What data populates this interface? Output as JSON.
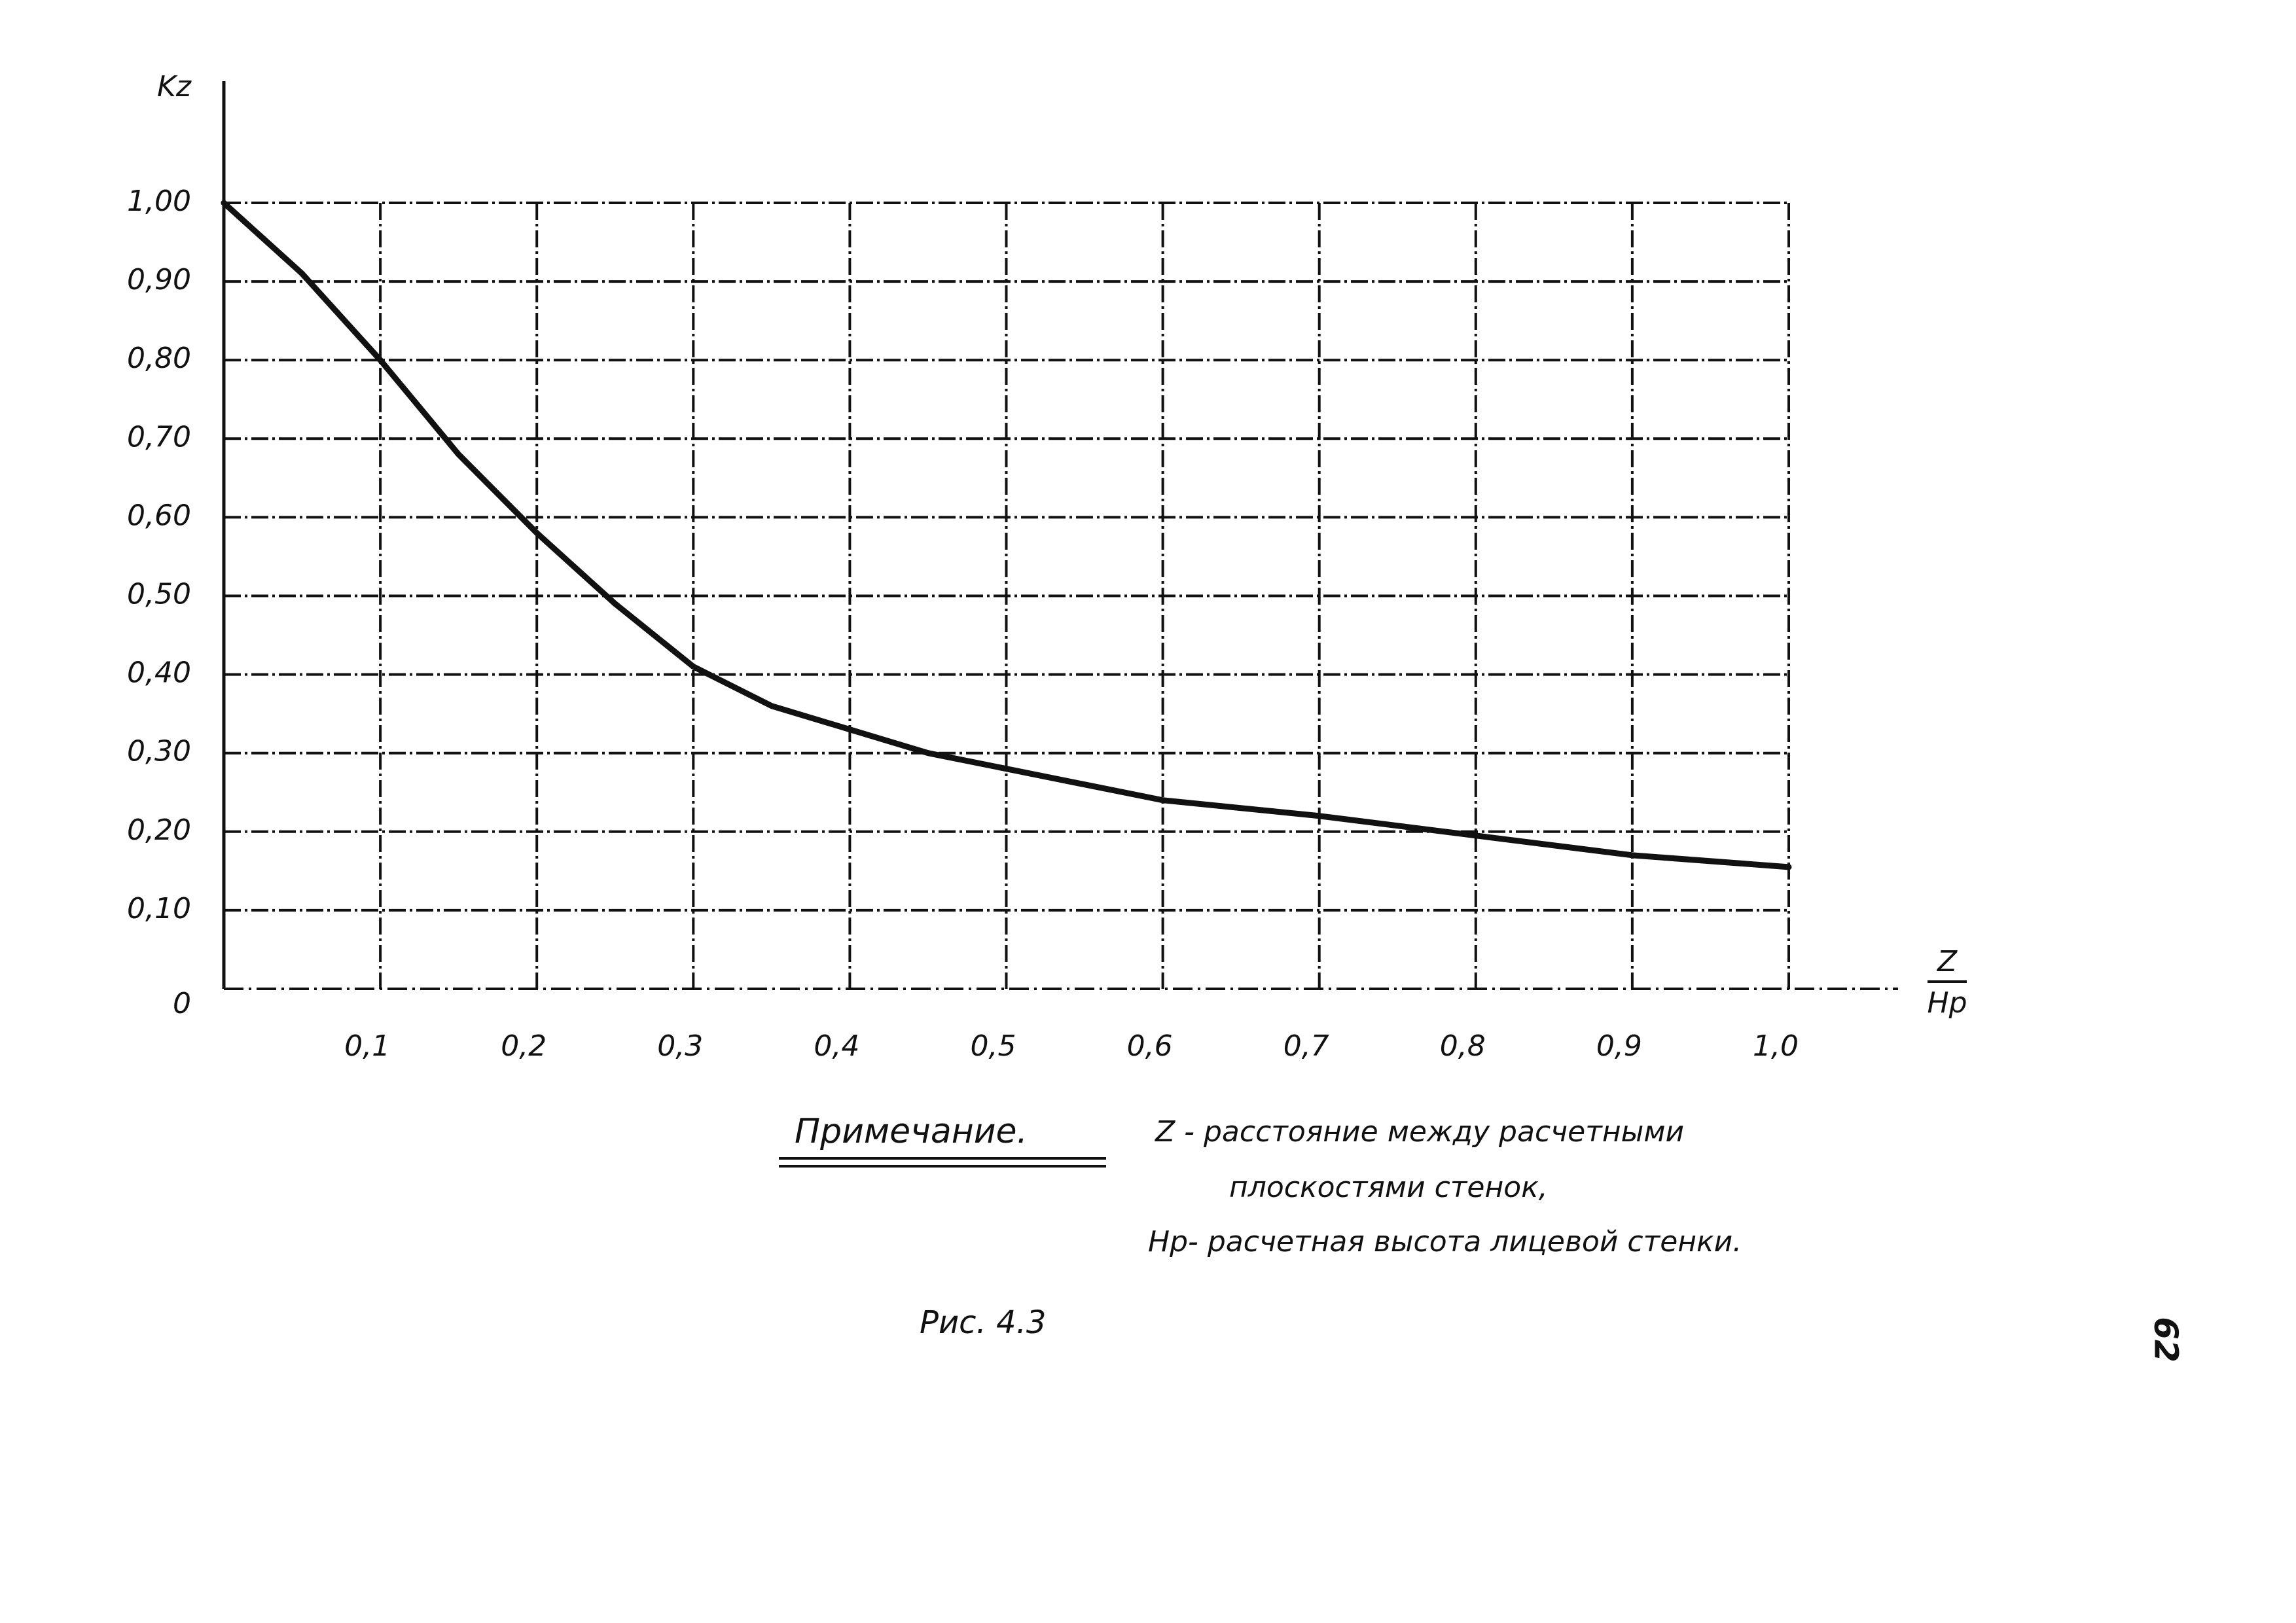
{
  "chart_data": {
    "type": "line",
    "ylabel": "Kz",
    "xlabel": {
      "numerator": "Z",
      "denominator": "Hp"
    },
    "x": [
      0,
      0.05,
      0.1,
      0.15,
      0.2,
      0.25,
      0.3,
      0.35,
      0.4,
      0.45,
      0.5,
      0.6,
      0.7,
      0.8,
      0.9,
      1.0
    ],
    "series": [
      {
        "color": "#111111",
        "values": [
          1.0,
          0.91,
          0.8,
          0.68,
          0.58,
          0.49,
          0.41,
          0.36,
          0.33,
          0.3,
          0.28,
          0.24,
          0.22,
          0.195,
          0.17,
          0.155
        ]
      }
    ],
    "xlim": [
      0,
      1.0
    ],
    "ylim": [
      0,
      1.0
    ],
    "xticks": [
      {
        "value": 0.1,
        "label": "0,1"
      },
      {
        "value": 0.2,
        "label": "0,2"
      },
      {
        "value": 0.3,
        "label": "0,3"
      },
      {
        "value": 0.4,
        "label": "0,4"
      },
      {
        "value": 0.5,
        "label": "0,5"
      },
      {
        "value": 0.6,
        "label": "0,6"
      },
      {
        "value": 0.7,
        "label": "0,7"
      },
      {
        "value": 0.8,
        "label": "0,8"
      },
      {
        "value": 0.9,
        "label": "0,9"
      },
      {
        "value": 1.0,
        "label": "1,0"
      }
    ],
    "yticks": [
      0,
      {
        "value": 0.1,
        "label": "0,10"
      },
      {
        "value": 0.2,
        "label": "0,20"
      },
      {
        "value": 0.3,
        "label": "0,30"
      },
      {
        "value": 0.4,
        "label": "0,40"
      },
      {
        "value": 0.5,
        "label": "0,50"
      },
      {
        "value": 0.6,
        "label": "0,60"
      },
      {
        "value": 0.7,
        "label": "0,70"
      },
      {
        "value": 0.8,
        "label": "0,80"
      },
      {
        "value": 0.9,
        "label": "0,90"
      },
      {
        "value": 1.0,
        "label": "1,00"
      }
    ],
    "grid": true
  },
  "note": {
    "heading": "Примечание.",
    "lines": [
      "Z - расстояние между расчетными",
      "плоскостями стенок,",
      "Hp- расчетная высота лицевой стенки."
    ]
  },
  "caption": "Рис. 4.3",
  "page_number": "62"
}
